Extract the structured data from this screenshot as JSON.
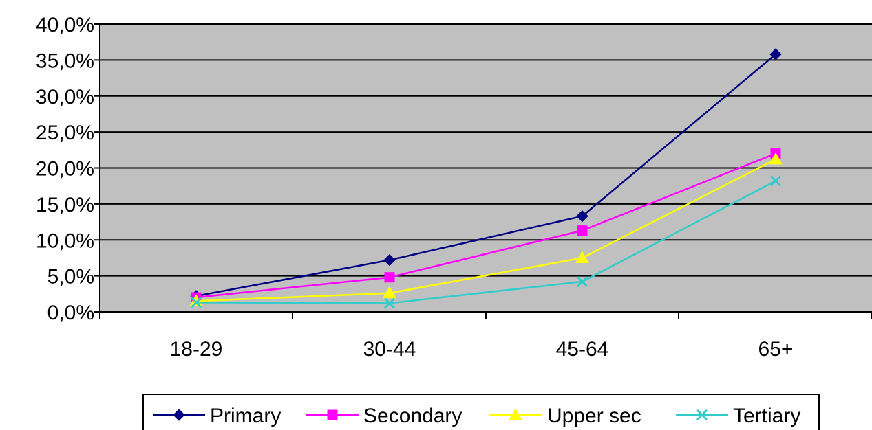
{
  "chart_data": {
    "type": "line",
    "title": "",
    "xlabel": "",
    "ylabel": "",
    "categories": [
      "18-29",
      "30-44",
      "45-64",
      "65+"
    ],
    "ylim": [
      0,
      40
    ],
    "ytick_values": [
      0,
      5,
      10,
      15,
      20,
      25,
      30,
      35,
      40
    ],
    "ytick_labels": [
      "0,0%",
      "5,0%",
      "10,0%",
      "15,0%",
      "20,0%",
      "25,0%",
      "30,0%",
      "35,0%",
      "40,0%"
    ],
    "grid": true,
    "legend_position": "bottom",
    "plot_background": "#c0c0c0",
    "series": [
      {
        "name": "Primary",
        "color": "#000080",
        "marker": "diamond",
        "values": [
          2.2,
          7.2,
          13.3,
          35.8
        ]
      },
      {
        "name": "Secondary",
        "color": "#ff00ff",
        "marker": "square",
        "values": [
          2.0,
          4.8,
          11.3,
          22.0
        ]
      },
      {
        "name": "Upper sec",
        "color": "#ffff00",
        "marker": "triangle",
        "values": [
          1.5,
          2.6,
          7.5,
          21.2
        ]
      },
      {
        "name": "Tertiary",
        "color": "#33cccc",
        "marker": "x",
        "values": [
          1.3,
          1.2,
          4.2,
          18.2
        ]
      }
    ]
  }
}
